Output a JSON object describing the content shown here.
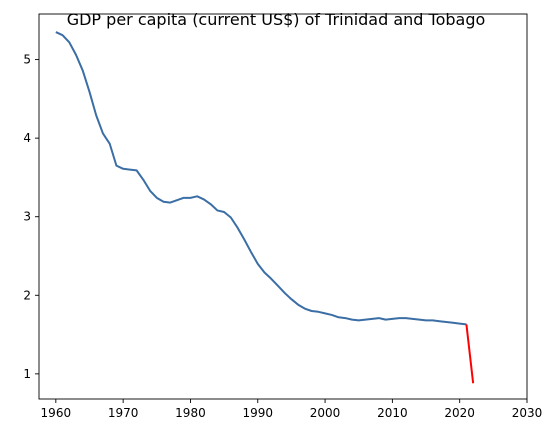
{
  "chart_data": {
    "type": "line",
    "title": "GDP per capita (current US$) of Trinidad and Tobago",
    "xlabel": "",
    "ylabel": "",
    "xlim": [
      1957.5,
      2030
    ],
    "ylim": [
      0.68,
      5.58
    ],
    "grid": false,
    "x_ticks": [
      1960,
      1970,
      1980,
      1990,
      2000,
      2010,
      2020,
      2030
    ],
    "y_ticks": [
      1,
      2,
      3,
      4,
      5
    ],
    "colors": {
      "main": "#3b6ea5",
      "highlight": "#ff0000"
    },
    "series": [
      {
        "x": [
          1960,
          1961,
          1962,
          1963,
          1964,
          1965,
          1966,
          1967,
          1968,
          1969,
          1970,
          1971,
          1972,
          1973,
          1974,
          1975,
          1976,
          1977,
          1978,
          1979,
          1980,
          1981,
          1982,
          1983,
          1984,
          1985,
          1986,
          1987,
          1988,
          1989,
          1990,
          1991,
          1992,
          1993,
          1994,
          1995,
          1996,
          1997,
          1998,
          1999,
          2000,
          2001,
          2002,
          2003,
          2004,
          2005,
          2006,
          2007,
          2008,
          2009,
          2010,
          2011,
          2012,
          2013,
          2014,
          2015,
          2016,
          2017,
          2018,
          2019,
          2020,
          2021
        ],
        "values": [
          5.35,
          5.31,
          5.22,
          5.06,
          4.86,
          4.59,
          4.29,
          4.06,
          3.93,
          3.65,
          3.61,
          3.6,
          3.59,
          3.47,
          3.33,
          3.24,
          3.19,
          3.18,
          3.21,
          3.24,
          3.24,
          3.26,
          3.22,
          3.16,
          3.08,
          3.06,
          2.99,
          2.86,
          2.71,
          2.55,
          2.4,
          2.29,
          2.21,
          2.12,
          2.03,
          1.95,
          1.88,
          1.83,
          1.8,
          1.79,
          1.77,
          1.75,
          1.72,
          1.71,
          1.69,
          1.68,
          1.69,
          1.7,
          1.71,
          1.69,
          1.7,
          1.71,
          1.71,
          1.7,
          1.69,
          1.68,
          1.68,
          1.67,
          1.66,
          1.65,
          1.64,
          1.63
        ]
      },
      {
        "x": [
          2021,
          2022
        ],
        "values": [
          1.63,
          0.88
        ]
      }
    ]
  }
}
